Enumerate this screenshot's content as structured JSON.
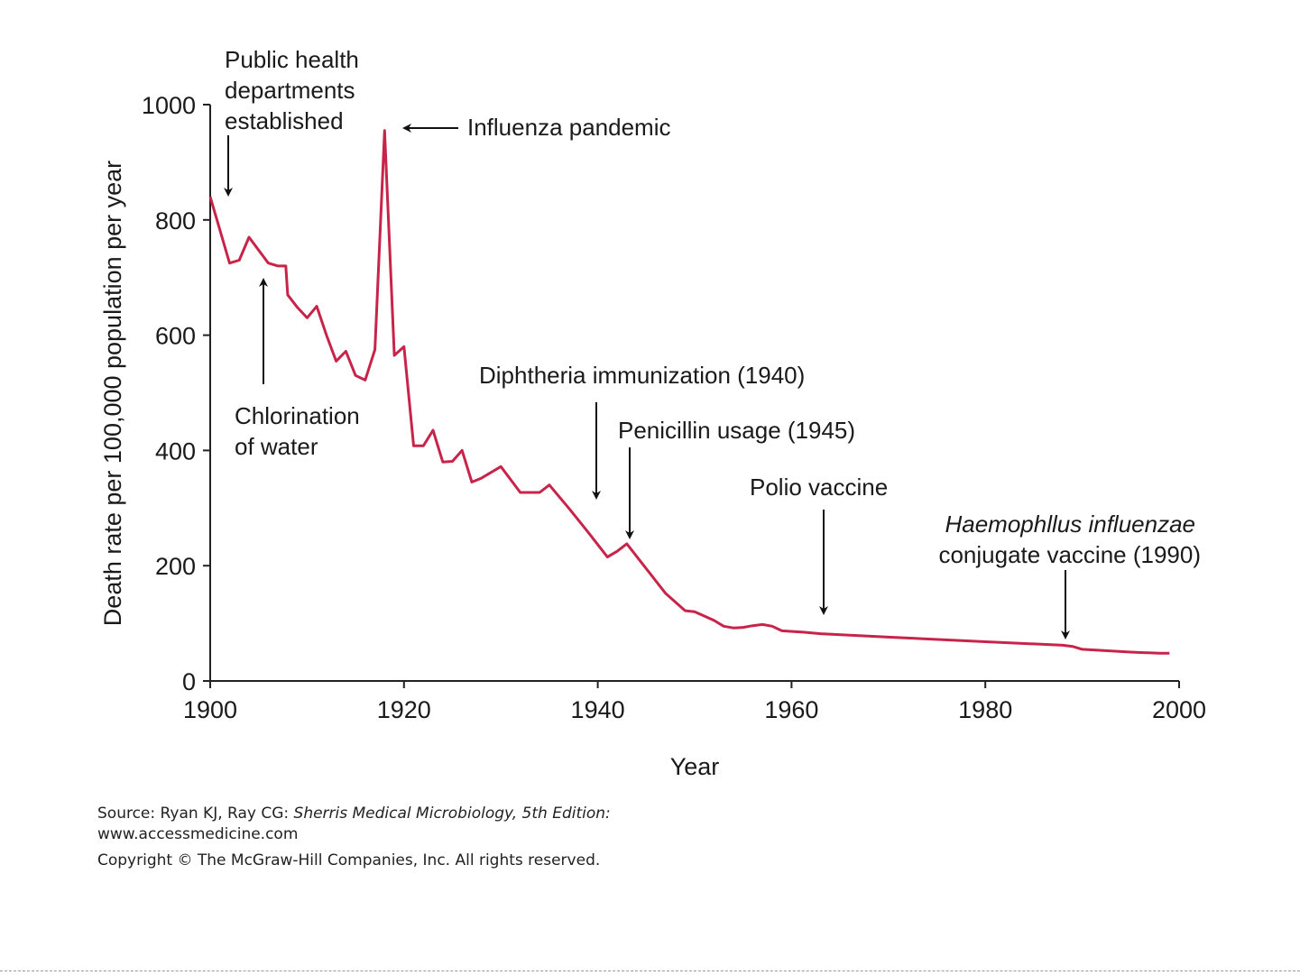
{
  "chart_data": {
    "type": "line",
    "title": "",
    "xlabel": "Year",
    "ylabel": "Death rate per 100,000 population per year",
    "xlim": [
      1900,
      2000
    ],
    "ylim": [
      0,
      1000
    ],
    "x_ticks": [
      1900,
      1920,
      1940,
      1960,
      1980,
      2000
    ],
    "y_ticks": [
      0,
      200,
      400,
      600,
      800,
      1000
    ],
    "grid": false,
    "line_color": "#c8244a",
    "series": [
      {
        "x": [
          1900,
          1902,
          1903,
          1904,
          1906,
          1907,
          1907.8,
          1908,
          1909,
          1910,
          1911,
          1912,
          1913,
          1914,
          1915,
          1916,
          1917,
          1918,
          1919,
          1920,
          1921,
          1922,
          1923,
          1924,
          1925,
          1926,
          1927,
          1928,
          1930,
          1932,
          1933,
          1934,
          1935,
          1937,
          1939,
          1941,
          1942,
          1943,
          1945,
          1947,
          1949,
          1950,
          1952,
          1953,
          1954,
          1955,
          1956,
          1957,
          1958,
          1959,
          1961,
          1963,
          1970,
          1980,
          1988,
          1989,
          1990,
          1995,
          1998,
          1999
        ],
        "y": [
          840,
          725,
          730,
          770,
          725,
          720,
          720,
          670,
          648,
          630,
          650,
          600,
          555,
          572,
          530,
          522,
          575,
          955,
          565,
          580,
          408,
          408,
          435,
          380,
          381,
          400,
          345,
          352,
          372,
          327,
          327,
          327,
          340,
          300,
          258,
          215,
          225,
          238,
          195,
          152,
          122,
          120,
          105,
          95,
          92,
          93,
          96,
          98,
          95,
          87,
          85,
          82,
          76,
          68,
          62,
          60,
          55,
          50,
          48,
          48
        ]
      }
    ],
    "annotations": [
      {
        "lines": [
          "Public health",
          "departments",
          "established"
        ],
        "italic_first_line": false,
        "arrow_to_year": 1902
      },
      {
        "lines": [
          "Chlorination",
          "of water"
        ],
        "italic_first_line": false,
        "arrow_to_year": 1906
      },
      {
        "lines": [
          "Influenza pandemic"
        ],
        "italic_first_line": false,
        "arrow_to_year": 1918
      },
      {
        "lines": [
          "Diphtheria immunization (1940)"
        ],
        "italic_first_line": false,
        "arrow_to_year": 1940
      },
      {
        "lines": [
          "Penicillin usage (1945)"
        ],
        "italic_first_line": false,
        "arrow_to_year": 1943
      },
      {
        "lines": [
          "Polio vaccine"
        ],
        "italic_first_line": false,
        "arrow_to_year": 1963
      },
      {
        "lines": [
          "Haemophllus influenzae",
          "conjugate vaccine (1990)"
        ],
        "italic_first_line": true,
        "arrow_to_year": 1988
      }
    ]
  },
  "source": {
    "prefix": "Source: Ryan KJ, Ray CG: ",
    "book": "Sherris Medical Microbiology, 5th Edition:",
    "url": "www.accessmedicine.com",
    "copyright": "Copyright © The McGraw-Hill Companies, Inc. All rights reserved."
  }
}
